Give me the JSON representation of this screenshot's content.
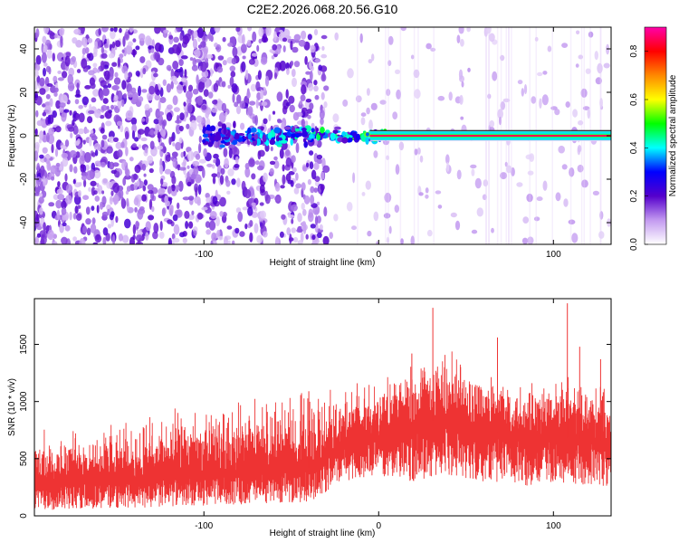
{
  "figure_title": "C2E2.2026.068.20.56.G10",
  "chart_data": [
    {
      "type": "heatmap",
      "title": "",
      "xlabel": "Height of straight line (km)",
      "ylabel": "Frequency (Hz)",
      "xlim": [
        -197,
        133
      ],
      "ylim": [
        -50,
        50
      ],
      "xticks": [
        -100,
        0,
        100
      ],
      "yticks": [
        -40,
        -20,
        0,
        20,
        40
      ],
      "colorbar": {
        "label": "Normalized spectral amplitude",
        "range": [
          0,
          0.9
        ],
        "ticks": [
          0.0,
          0.2,
          0.4,
          0.6,
          0.8
        ],
        "colors": [
          "#ffffff",
          "#c39af0",
          "#5500cc",
          "#0000ff",
          "#00ffff",
          "#00ff00",
          "#ffff00",
          "#ff8800",
          "#ff0000",
          "#ff00aa"
        ]
      },
      "features": {
        "noise_until_km": -30,
        "carrier_line_start_km": -5,
        "carrier_frequency_hz": 0,
        "carrier_band_hz": [
          -2,
          2
        ],
        "carrier_amplitude": 0.85
      }
    },
    {
      "type": "line",
      "title": "",
      "xlabel": "Height of straight line (km)",
      "ylabel": "SNR (10 * v/v)",
      "xlim": [
        -197,
        133
      ],
      "ylim": [
        0,
        1900
      ],
      "xticks": [
        -100,
        0,
        100
      ],
      "yticks": [
        0,
        500,
        1000,
        1500
      ],
      "color": "#ee3333",
      "envelope": {
        "x": [
          -197,
          -160,
          -120,
          -80,
          -40,
          -20,
          0,
          20,
          40,
          60,
          80,
          100,
          133
        ],
        "lower": [
          50,
          60,
          80,
          100,
          120,
          300,
          350,
          300,
          350,
          300,
          250,
          300,
          250
        ],
        "mean": [
          300,
          330,
          350,
          400,
          420,
          650,
          700,
          800,
          850,
          750,
          700,
          700,
          650
        ],
        "upper": [
          650,
          700,
          800,
          900,
          1000,
          1050,
          1100,
          1250,
          1350,
          1200,
          1150,
          1150,
          1050
        ]
      },
      "peaks": [
        {
          "x": 31,
          "y": 1820
        },
        {
          "x": 108,
          "y": 1860
        },
        {
          "x": 68,
          "y": 1560
        },
        {
          "x": 115,
          "y": 1480
        },
        {
          "x": 127,
          "y": 1370
        },
        {
          "x": 19,
          "y": 1420
        },
        {
          "x": -40,
          "y": 1090
        }
      ]
    }
  ]
}
